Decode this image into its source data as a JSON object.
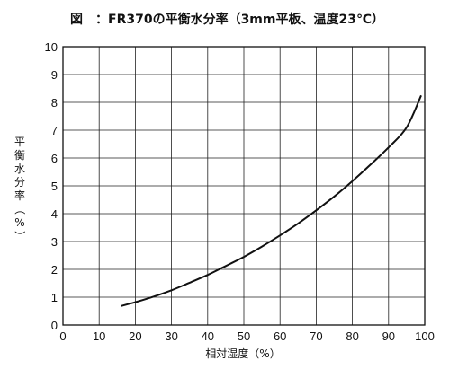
{
  "chart_data": {
    "type": "line",
    "title": "図　：FR370の平衡水分率（3mm平板、温度23℃）",
    "xlabel": "相対湿度（%）",
    "ylabel_chars": [
      "平",
      "衡",
      "水",
      "分",
      "率",
      "（",
      "%",
      "）"
    ],
    "xlim": [
      0,
      100
    ],
    "ylim": [
      0,
      10
    ],
    "x_ticks": [
      0,
      10,
      20,
      30,
      40,
      50,
      60,
      70,
      80,
      90,
      100
    ],
    "y_ticks": [
      0,
      1,
      2,
      3,
      4,
      5,
      6,
      7,
      8,
      9,
      10
    ],
    "grid": true,
    "series": [
      {
        "x": [
          16,
          20,
          25,
          30,
          35,
          40,
          45,
          50,
          55,
          60,
          65,
          70,
          75,
          80,
          85,
          90,
          95,
          99
        ],
        "y": [
          0.68,
          0.82,
          1.02,
          1.25,
          1.52,
          1.8,
          2.12,
          2.45,
          2.82,
          3.22,
          3.65,
          4.12,
          4.62,
          5.17,
          5.76,
          6.38,
          7.1,
          8.25
        ]
      }
    ]
  }
}
